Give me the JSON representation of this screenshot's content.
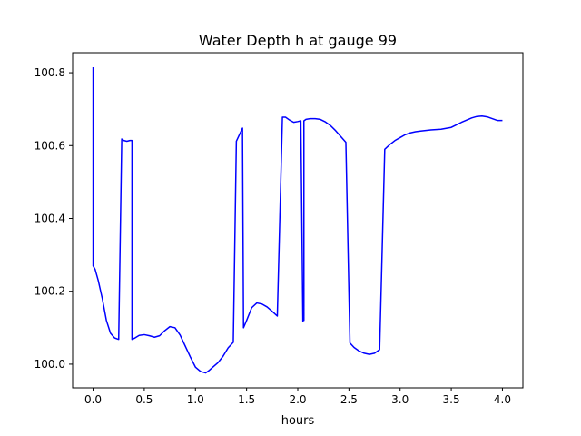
{
  "chart_data": {
    "type": "line",
    "title": "Water Depth h at gauge 99",
    "xlabel": "hours",
    "ylabel": "",
    "xlim": [
      -0.2,
      4.2
    ],
    "ylim": [
      99.935,
      100.855
    ],
    "xticks": [
      0.0,
      0.5,
      1.0,
      1.5,
      2.0,
      2.5,
      3.0,
      3.5,
      4.0
    ],
    "xtick_labels": [
      "0.0",
      "0.5",
      "1.0",
      "1.5",
      "2.0",
      "2.5",
      "3.0",
      "3.5",
      "4.0"
    ],
    "yticks": [
      100.0,
      100.2,
      100.4,
      100.6,
      100.8
    ],
    "ytick_labels": [
      "100.0",
      "100.2",
      "100.4",
      "100.6",
      "100.8"
    ],
    "grid": false,
    "series": [
      {
        "color": "#0000ff",
        "x": [
          0.0,
          0.0,
          0.0,
          0.02,
          0.05,
          0.09,
          0.13,
          0.17,
          0.21,
          0.25,
          0.28,
          0.28,
          0.3,
          0.33,
          0.36,
          0.38,
          0.38,
          0.41,
          0.45,
          0.5,
          0.55,
          0.6,
          0.65,
          0.7,
          0.75,
          0.8,
          0.85,
          0.9,
          0.95,
          1.0,
          1.05,
          1.1,
          1.13,
          1.17,
          1.22,
          1.27,
          1.32,
          1.37,
          1.4,
          1.4,
          1.43,
          1.46,
          1.46,
          1.47,
          1.5,
          1.55,
          1.6,
          1.65,
          1.7,
          1.75,
          1.8,
          1.85,
          1.88,
          1.88,
          1.92,
          1.96,
          2.0,
          2.03,
          2.05,
          2.05,
          2.06,
          2.06,
          2.08,
          2.12,
          2.17,
          2.22,
          2.27,
          2.32,
          2.37,
          2.42,
          2.47,
          2.51,
          2.51,
          2.55,
          2.6,
          2.65,
          2.7,
          2.75,
          2.8,
          2.85,
          2.85,
          2.9,
          2.95,
          3.0,
          3.05,
          3.1,
          3.15,
          3.2,
          3.3,
          3.4,
          3.5,
          3.55,
          3.6,
          3.65,
          3.7,
          3.75,
          3.8,
          3.85,
          3.9,
          3.95,
          4.0
        ],
        "y": [
          100.815,
          100.27,
          100.27,
          100.26,
          100.23,
          100.18,
          100.12,
          100.085,
          100.072,
          100.068,
          100.618,
          100.618,
          100.614,
          100.612,
          100.614,
          100.614,
          100.068,
          100.072,
          100.079,
          100.081,
          100.078,
          100.074,
          100.078,
          100.092,
          100.103,
          100.1,
          100.08,
          100.05,
          100.02,
          99.992,
          99.98,
          99.976,
          99.982,
          99.992,
          100.004,
          100.022,
          100.045,
          100.06,
          100.612,
          100.612,
          100.63,
          100.648,
          100.648,
          100.1,
          100.12,
          100.155,
          100.168,
          100.165,
          100.157,
          100.145,
          100.132,
          100.678,
          100.678,
          100.678,
          100.67,
          100.664,
          100.666,
          100.668,
          100.118,
          100.12,
          100.12,
          100.668,
          100.672,
          100.674,
          100.674,
          100.672,
          100.665,
          100.655,
          100.641,
          100.625,
          100.609,
          100.058,
          100.058,
          100.046,
          100.036,
          100.03,
          100.027,
          100.03,
          100.04,
          100.59,
          100.59,
          100.603,
          100.614,
          100.622,
          100.63,
          100.635,
          100.638,
          100.64,
          100.643,
          100.645,
          100.65,
          100.657,
          100.664,
          100.67,
          100.676,
          100.68,
          100.681,
          100.679,
          100.674,
          100.669,
          100.669
        ]
      }
    ]
  }
}
